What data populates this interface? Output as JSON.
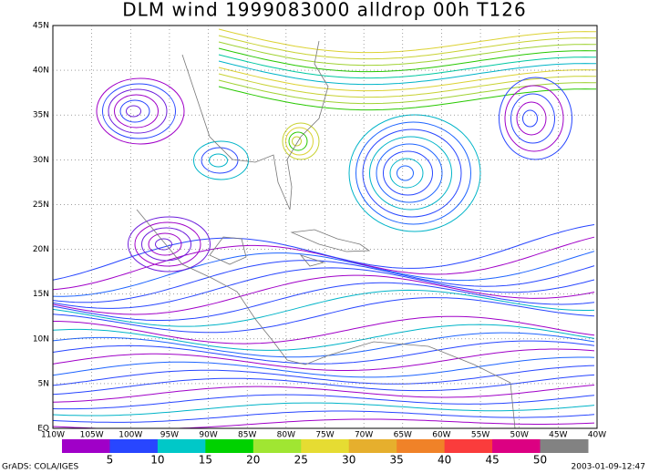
{
  "header": {
    "title": "DLM wind 1999083000 alldrop 00h T126"
  },
  "axes": {
    "lon_labels": [
      "110W",
      "105W",
      "100W",
      "95W",
      "90W",
      "85W",
      "80W",
      "75W",
      "70W",
      "65W",
      "60W",
      "55W",
      "50W",
      "45W",
      "40W"
    ],
    "lat_labels": [
      "EQ",
      "5N",
      "10N",
      "15N",
      "20N",
      "25N",
      "30N",
      "35N",
      "40N",
      "45N"
    ]
  },
  "colorbar": {
    "labels": [
      5,
      10,
      15,
      20,
      25,
      30,
      35,
      40,
      45,
      50
    ],
    "colors": [
      "#a000c8",
      "#2846ff",
      "#00c8c8",
      "#00d200",
      "#a0e632",
      "#e6dc32",
      "#e6af2d",
      "#f08228",
      "#fa3c3c",
      "#dc0082",
      "#828282"
    ]
  },
  "footer": {
    "left": "GrADS: COLA/IGES",
    "right": "2003-01-09-12:47"
  }
}
